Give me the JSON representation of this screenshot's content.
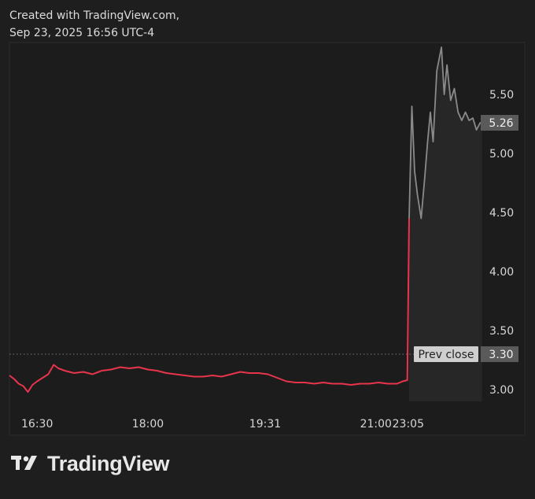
{
  "header": {
    "line1": "Created with TradingView.com,",
    "line2": "Sep 23, 2025 16:56 UTC-4"
  },
  "footer": {
    "brand": "TradingView",
    "logo_icon": "tradingview-logo-icon"
  },
  "colors": {
    "background": "#1e1e1e",
    "panel": "#1c1c1c",
    "red_line": "#e8354b",
    "gray_line": "#8a8a8a",
    "badge_bg": "#5a5a5a",
    "prev_close_badge_bg": "#cfcfcf"
  },
  "chart_data": {
    "type": "line",
    "title": "",
    "xlabel": "",
    "ylabel": "",
    "ylim": [
      2.9,
      5.9
    ],
    "y_ticks": [
      3.0,
      3.5,
      4.0,
      4.5,
      5.0,
      5.5
    ],
    "y_tick_labels": [
      "3.00",
      "3.50",
      "4.00",
      "4.50",
      "5.00",
      "5.50"
    ],
    "x_tick_labels": [
      "16:30",
      "18:00",
      "19:31",
      "21:00",
      "23:05"
    ],
    "grid": false,
    "series": [
      {
        "color": "#e8354b",
        "points": [
          [
            0,
            3.12
          ],
          [
            0.5,
            3.09
          ],
          [
            1,
            3.05
          ],
          [
            1.5,
            3.03
          ],
          [
            2,
            2.98
          ],
          [
            2.5,
            3.04
          ],
          [
            3,
            3.07
          ],
          [
            3.6,
            3.1
          ],
          [
            4.2,
            3.13
          ],
          [
            4.8,
            3.21
          ],
          [
            5.3,
            3.18
          ],
          [
            6,
            3.16
          ],
          [
            7,
            3.14
          ],
          [
            8,
            3.15
          ],
          [
            9,
            3.13
          ],
          [
            10,
            3.16
          ],
          [
            11,
            3.17
          ],
          [
            12,
            3.19
          ],
          [
            13,
            3.18
          ],
          [
            14,
            3.19
          ],
          [
            15,
            3.17
          ],
          [
            16,
            3.16
          ],
          [
            17,
            3.14
          ],
          [
            18,
            3.13
          ],
          [
            19,
            3.12
          ],
          [
            20,
            3.11
          ],
          [
            21,
            3.11
          ],
          [
            22,
            3.12
          ],
          [
            23,
            3.11
          ],
          [
            24,
            3.13
          ],
          [
            25,
            3.15
          ],
          [
            26,
            3.14
          ],
          [
            27,
            3.14
          ],
          [
            28,
            3.13
          ],
          [
            29,
            3.1
          ],
          [
            30,
            3.07
          ],
          [
            31,
            3.06
          ],
          [
            32,
            3.06
          ],
          [
            33,
            3.05
          ],
          [
            34,
            3.06
          ],
          [
            35,
            3.05
          ],
          [
            36,
            3.05
          ],
          [
            37,
            3.04
          ],
          [
            38,
            3.05
          ],
          [
            39,
            3.05
          ],
          [
            40,
            3.06
          ],
          [
            41,
            3.05
          ],
          [
            42,
            3.05
          ],
          [
            42.6,
            3.07
          ],
          [
            43.1,
            3.08
          ],
          [
            43.3,
            4.45
          ]
        ]
      },
      {
        "color": "#8a8a8a",
        "points": [
          [
            43.3,
            4.45
          ],
          [
            43.6,
            5.4
          ],
          [
            43.9,
            4.85
          ],
          [
            44.2,
            4.65
          ],
          [
            44.6,
            4.45
          ],
          [
            45,
            4.8
          ],
          [
            45.3,
            5.1
          ],
          [
            45.6,
            5.35
          ],
          [
            45.9,
            5.1
          ],
          [
            46.3,
            5.7
          ],
          [
            46.8,
            5.9
          ],
          [
            47.1,
            5.5
          ],
          [
            47.4,
            5.75
          ],
          [
            47.8,
            5.45
          ],
          [
            48.2,
            5.55
          ],
          [
            48.6,
            5.35
          ],
          [
            49,
            5.28
          ],
          [
            49.4,
            5.35
          ],
          [
            49.8,
            5.28
          ],
          [
            50.2,
            5.3
          ],
          [
            50.6,
            5.2
          ],
          [
            51,
            5.26
          ],
          [
            51.2,
            5.26
          ]
        ]
      }
    ],
    "reference_line": {
      "label": "Prev close",
      "value": 3.3,
      "value_label": "3.30"
    },
    "last_value_label": "5.26"
  }
}
